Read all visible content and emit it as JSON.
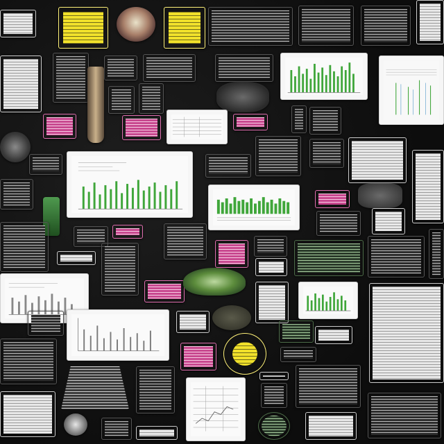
{
  "collage": {
    "palette": {
      "background": "#141414",
      "dark_card": "#2c2c2c",
      "light_card": "#e8e8e8",
      "accent_green": "#3fa63a",
      "accent_pink": "#c8488f",
      "accent_yellow": "#f1e12b"
    }
  }
}
